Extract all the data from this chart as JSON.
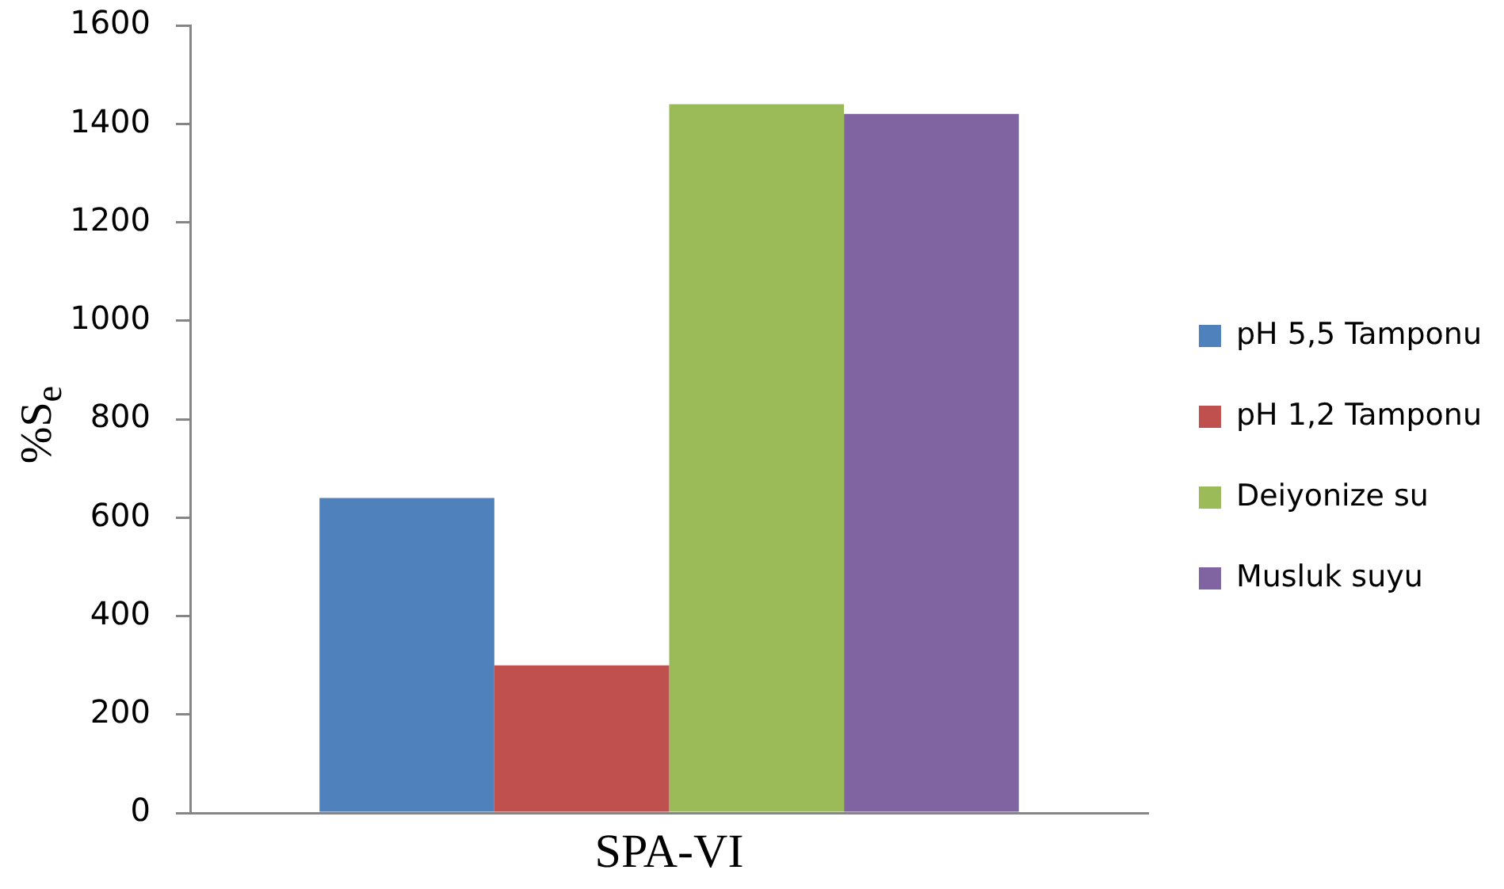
{
  "chart_data": {
    "type": "bar",
    "categories": [
      "SPA-VI"
    ],
    "ylabel": "%S$_{e}$",
    "ylim": [
      0,
      1600
    ],
    "yticks": [
      0,
      200,
      400,
      600,
      800,
      1000,
      1200,
      1400,
      1600
    ],
    "grid": false,
    "legend": "right",
    "series": [
      {
        "name": "pH 5,5 Tamponu",
        "color": "#4f81bd",
        "values": [
          640
        ]
      },
      {
        "name": "pH 1,2 Tamponu",
        "color": "#c0504d",
        "values": [
          300
        ]
      },
      {
        "name": "Deiyonize su",
        "color": "#9bbb59",
        "values": [
          1440
        ]
      },
      {
        "name": "Musluk suyu",
        "color": "#8064a2",
        "values": [
          1420
        ]
      }
    ]
  }
}
